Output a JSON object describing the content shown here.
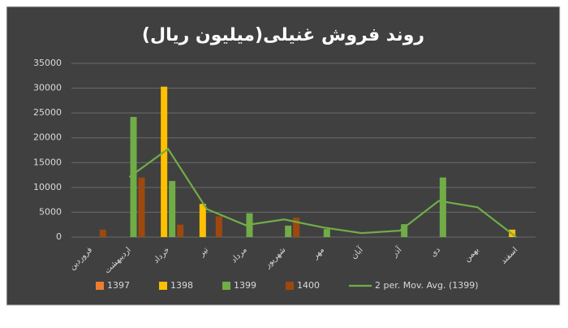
{
  "chart_data": {
    "type": "bar",
    "title": "روند فروش غنیلی(میلیون ریال)",
    "categories": [
      "فروردین",
      "اردیبهشت",
      "خرداد",
      "تیر",
      "مرداد",
      "شهریور",
      "مهر",
      "آبان",
      "آذر",
      "دی",
      "بهمن",
      "اسفند"
    ],
    "series": [
      {
        "name": "1397",
        "color": "#ed7d31",
        "values": [
          null,
          null,
          null,
          null,
          null,
          null,
          null,
          null,
          null,
          null,
          null,
          null
        ]
      },
      {
        "name": "1398",
        "color": "#ffc000",
        "values": [
          null,
          null,
          30300,
          6700,
          null,
          null,
          null,
          null,
          null,
          null,
          null,
          1500
        ]
      },
      {
        "name": "1399",
        "color": "#70ad47",
        "values": [
          null,
          24200,
          11300,
          null,
          4800,
          2300,
          1600,
          null,
          2600,
          12000,
          null,
          null
        ]
      },
      {
        "name": "1400",
        "color": "#9e480e",
        "values": [
          1500,
          12000,
          2500,
          4200,
          null,
          3900,
          null,
          null,
          null,
          null,
          null,
          null
        ]
      },
      {
        "name": "2 per. Mov. Avg. (1399)",
        "type": "line",
        "color": "#70ad47",
        "values": [
          null,
          12100,
          17750,
          5650,
          2400,
          3550,
          1950,
          800,
          1300,
          7300,
          6000,
          0
        ]
      }
    ],
    "ylim": [
      0,
      35000
    ],
    "yticks": [
      0,
      5000,
      10000,
      15000,
      20000,
      25000,
      30000,
      35000
    ],
    "grid": true
  }
}
